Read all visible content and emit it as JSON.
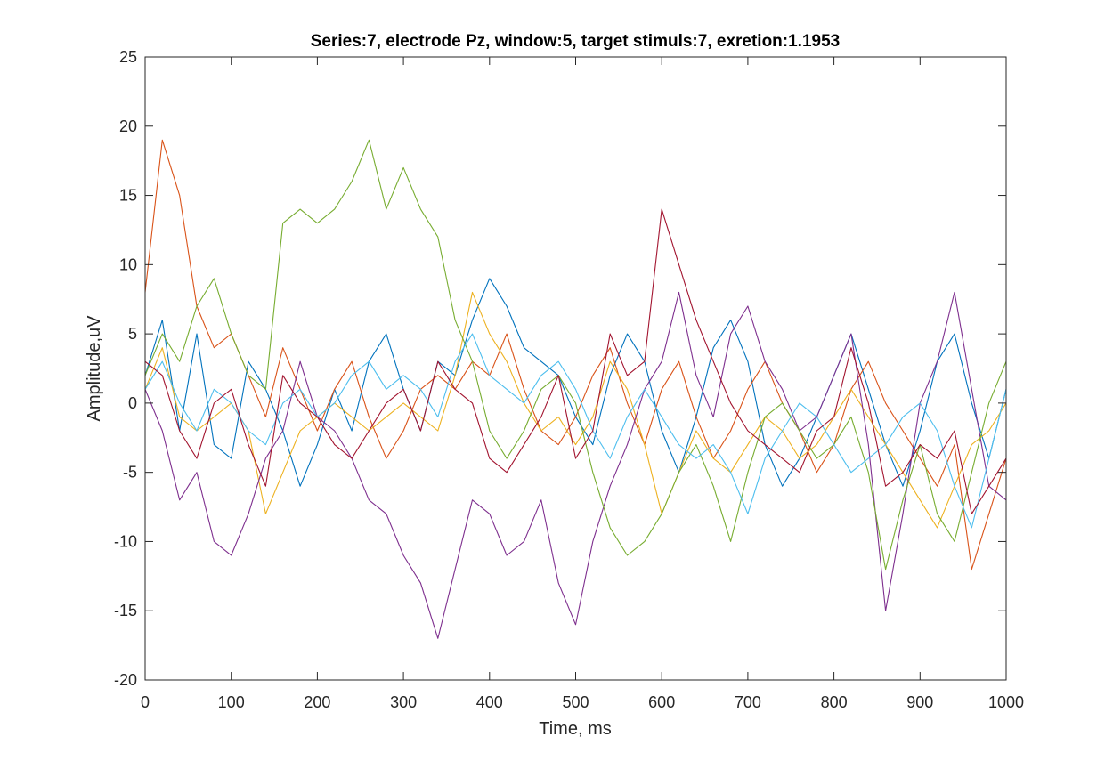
{
  "chart_data": {
    "type": "line",
    "title": "Series:7, electrode Pz, window:5, target stimuls:7, exretion:1.1953",
    "xlabel": "Time, ms",
    "ylabel": "Amplitude,uV",
    "xlim": [
      0,
      1000
    ],
    "ylim": [
      -20,
      25
    ],
    "x_ticks": [
      0,
      100,
      200,
      300,
      400,
      500,
      600,
      700,
      800,
      900,
      1000
    ],
    "y_ticks": [
      25,
      20,
      15,
      10,
      5,
      0,
      -5,
      -10,
      -15,
      -20
    ],
    "x_tick_labels": [
      "0",
      "100",
      "200",
      "300",
      "400",
      "500",
      "600",
      "700",
      "800",
      "900",
      "1000"
    ],
    "y_tick_labels": [
      "25",
      "20",
      "15",
      "10",
      "5",
      "0",
      "-5",
      "-10",
      "-15",
      "-20"
    ],
    "grid": false,
    "legend": "none",
    "x": [
      0,
      20,
      40,
      60,
      80,
      100,
      120,
      140,
      160,
      180,
      200,
      220,
      240,
      260,
      280,
      300,
      320,
      340,
      360,
      380,
      400,
      420,
      440,
      460,
      480,
      500,
      520,
      540,
      560,
      580,
      600,
      620,
      640,
      660,
      680,
      700,
      720,
      740,
      760,
      780,
      800,
      820,
      840,
      860,
      880,
      900,
      920,
      940,
      960,
      980,
      1000
    ],
    "series": [
      {
        "color": "#0072BD",
        "values": [
          2,
          6,
          -2,
          5,
          -3,
          -4,
          3,
          1,
          -2,
          -6,
          -3,
          1,
          -2,
          3,
          5,
          1,
          -2,
          3,
          2,
          6,
          9,
          7,
          4,
          3,
          2,
          -1,
          -3,
          2,
          5,
          3,
          -2,
          -5,
          -1,
          4,
          6,
          3,
          -3,
          -6,
          -4,
          -1,
          2,
          5,
          1,
          -3,
          -6,
          -2,
          3,
          5,
          0,
          -4,
          1
        ]
      },
      {
        "color": "#D95319",
        "values": [
          8,
          19,
          15,
          7,
          4,
          5,
          2,
          -1,
          4,
          1,
          -2,
          1,
          3,
          -1,
          -4,
          -2,
          1,
          2,
          1,
          3,
          2,
          5,
          1,
          -2,
          -3,
          -1,
          2,
          4,
          0,
          -3,
          1,
          3,
          -1,
          -4,
          -2,
          1,
          3,
          0,
          -2,
          -5,
          -3,
          1,
          3,
          0,
          -2,
          -4,
          -6,
          -3,
          -12,
          -8,
          -4
        ]
      },
      {
        "color": "#EDB120",
        "values": [
          1,
          4,
          -1,
          -2,
          -1,
          0,
          -2,
          -8,
          -5,
          -2,
          -1,
          0,
          -1,
          -2,
          -1,
          0,
          -1,
          -2,
          2,
          8,
          5,
          3,
          0,
          -2,
          -1,
          -3,
          -1,
          3,
          1,
          -3,
          -8,
          -5,
          -2,
          -4,
          -5,
          -3,
          -1,
          -2,
          -4,
          -3,
          -1,
          1,
          -1,
          -3,
          -5,
          -7,
          -9,
          -6,
          -3,
          -2,
          0
        ]
      },
      {
        "color": "#7E2F8E",
        "values": [
          1,
          -2,
          -7,
          -5,
          -10,
          -11,
          -8,
          -4,
          -2,
          3,
          -1,
          -2,
          -4,
          -7,
          -8,
          -11,
          -13,
          -17,
          -12,
          -7,
          -8,
          -11,
          -10,
          -7,
          -13,
          -16,
          -10,
          -6,
          -3,
          1,
          3,
          8,
          2,
          -1,
          5,
          7,
          3,
          1,
          -2,
          -1,
          2,
          5,
          -3,
          -15,
          -8,
          0,
          3,
          8,
          1,
          -6,
          -7
        ]
      },
      {
        "color": "#77AC30",
        "values": [
          2,
          5,
          3,
          7,
          9,
          5,
          2,
          1,
          13,
          14,
          13,
          14,
          16,
          19,
          14,
          17,
          14,
          12,
          6,
          3,
          -2,
          -4,
          -2,
          1,
          2,
          0,
          -5,
          -9,
          -11,
          -10,
          -8,
          -5,
          -3,
          -6,
          -10,
          -5,
          -1,
          0,
          -2,
          -4,
          -3,
          -1,
          -5,
          -12,
          -7,
          -3,
          -8,
          -10,
          -5,
          0,
          3
        ]
      },
      {
        "color": "#4DBEEE",
        "values": [
          1,
          3,
          0,
          -2,
          1,
          0,
          -2,
          -3,
          0,
          1,
          -1,
          0,
          2,
          3,
          1,
          2,
          1,
          -1,
          3,
          5,
          2,
          1,
          0,
          2,
          3,
          1,
          -2,
          -4,
          -1,
          1,
          -1,
          -3,
          -4,
          -3,
          -5,
          -8,
          -4,
          -2,
          0,
          -1,
          -3,
          -5,
          -4,
          -3,
          -1,
          0,
          -2,
          -6,
          -9,
          -4,
          1
        ]
      },
      {
        "color": "#A2142F",
        "values": [
          3,
          2,
          -2,
          -4,
          0,
          1,
          -3,
          -6,
          2,
          0,
          -1,
          -3,
          -4,
          -2,
          0,
          1,
          -2,
          3,
          1,
          0,
          -4,
          -5,
          -3,
          -1,
          2,
          -4,
          -2,
          5,
          2,
          3,
          14,
          10,
          6,
          3,
          0,
          -2,
          -3,
          -4,
          -5,
          -2,
          -1,
          4,
          0,
          -6,
          -5,
          -3,
          -4,
          -2,
          -8,
          -6,
          -4
        ]
      }
    ]
  }
}
